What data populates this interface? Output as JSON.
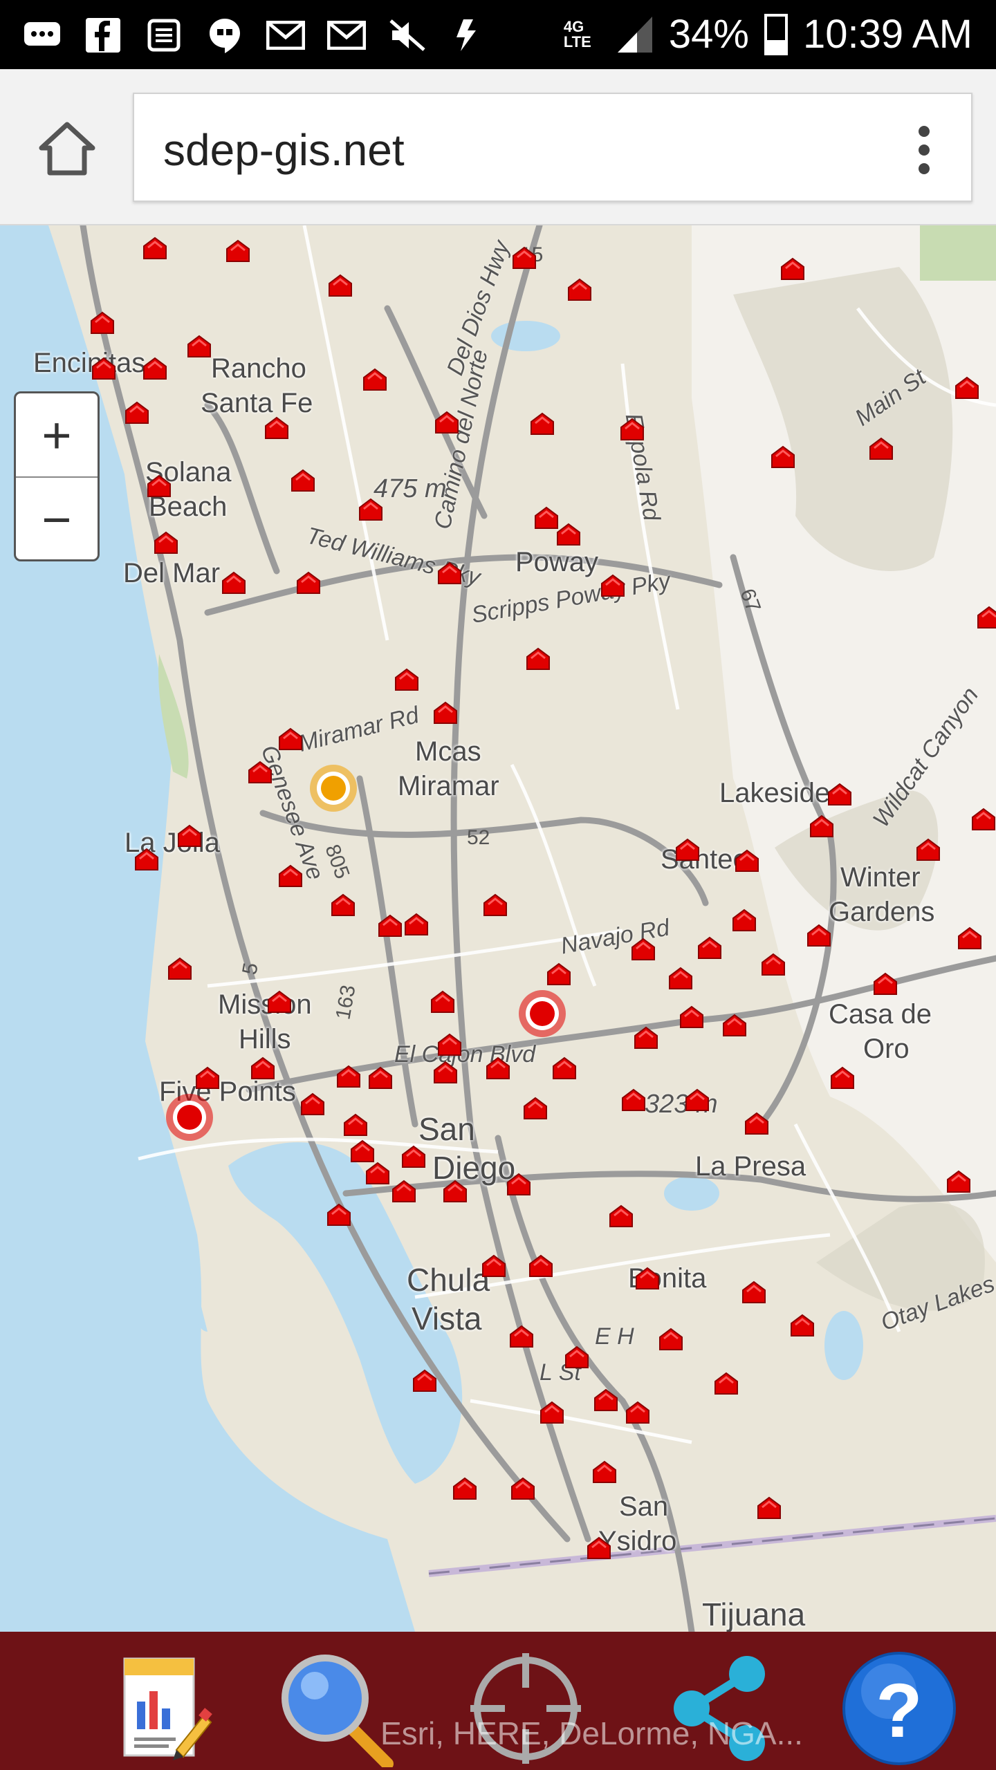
{
  "status_bar": {
    "battery": "34%",
    "time": "10:39 AM",
    "network": "4G LTE",
    "icons": [
      "message-icon",
      "facebook-icon",
      "calendar-icon",
      "hangouts-icon",
      "gmail-icon",
      "gmail-icon",
      "mute-icon",
      "data-transfer-icon",
      "signal-icon",
      "battery-icon"
    ]
  },
  "browser": {
    "url": "sdep-gis.net",
    "home_icon": "home-icon",
    "menu_icon": "more-vert-icon"
  },
  "map": {
    "zoom_in": "+",
    "zoom_out": "−",
    "places": [
      "Encinitas",
      "Rancho",
      "Santa Fe",
      "Solana",
      "Beach",
      "Del Mar",
      "Poway",
      "Mcas",
      "Miramar",
      "La Jolla",
      "Lakeside",
      "Santee",
      "Winter",
      "Gardens",
      "Mission",
      "Hills",
      "Five Points",
      "San",
      "Diego",
      "Casa de",
      "Oro",
      "La Presa",
      "Chula",
      "Vista",
      "Bonita",
      "San",
      "Ysidro",
      "Tijuana"
    ],
    "road_labels": [
      "Miramar Rd",
      "Scripps Poway Pky",
      "Camino del Norte",
      "Espola Rd",
      "Ted Williams Pky",
      "Navajo Rd",
      "El Cajon Blvd",
      "Wildcat Canyon",
      "Main St",
      "Genesee Ave",
      "Del Dios Hwy",
      "E H",
      "L St",
      "Otay Lakes"
    ],
    "shields": [
      "5",
      "15",
      "52",
      "805",
      "163",
      "67"
    ],
    "elevations": [
      "475 m",
      "323 m"
    ],
    "attribution": "Esri, HERE, DeLorme, NGA..."
  },
  "toolbar": {
    "tools": [
      {
        "name": "report-icon"
      },
      {
        "name": "search-icon"
      },
      {
        "name": "locate-icon"
      },
      {
        "name": "share-icon"
      },
      {
        "name": "help-icon",
        "label": "?"
      }
    ]
  },
  "colors": {
    "status_bar": "#000000",
    "toolbar": "#6e1216",
    "marker": "#e00000",
    "alert_orange": "#f0a000"
  }
}
